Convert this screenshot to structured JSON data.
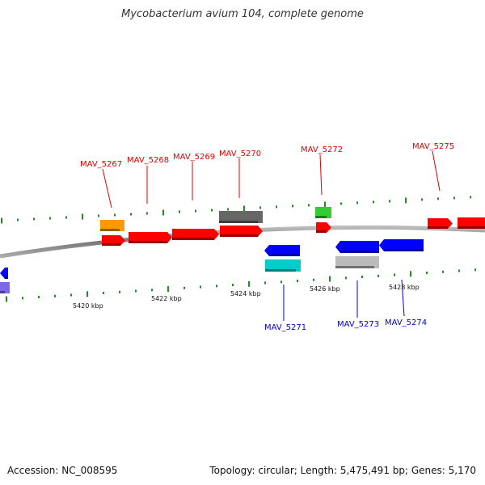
{
  "title": "Mycobacterium avium 104, complete genome",
  "accession_text": "Accession: NC_008595",
  "stats_text": "Topology: circular; Length: 5,475,491 bp; Genes: 5,170",
  "colors": {
    "backbone": "#888888",
    "tick": "#228b22",
    "forward_label": "#dd0000",
    "reverse_label": "#0000cc"
  },
  "scale_labels": [
    "5420 kbp",
    "5422 kbp",
    "5424 kbp",
    "5426 kbp",
    "5428 kbp"
  ],
  "forward_genes": [
    {
      "name": "MAV_5267",
      "color": "#ff0000"
    },
    {
      "name": "MAV_5268",
      "color": "#ff0000"
    },
    {
      "name": "MAV_5269",
      "color": "#ff0000"
    },
    {
      "name": "MAV_5270",
      "color": "#ff0000"
    },
    {
      "name": "MAV_5272",
      "color": "#ff0000"
    },
    {
      "name": "MAV_5275",
      "color": "#ff0000"
    }
  ],
  "reverse_genes": [
    {
      "name": "MAV_5271",
      "color": "#0000ff"
    },
    {
      "name": "MAV_5273",
      "color": "#0000ff"
    },
    {
      "name": "MAV_5274",
      "color": "#0000ff"
    }
  ],
  "feature_colors": {
    "orange": "#ff9900",
    "gray": "#666666",
    "green": "#33cc33",
    "cyan": "#00cccc",
    "light_gray": "#bbbbbb",
    "purple": "#7b68ee"
  }
}
